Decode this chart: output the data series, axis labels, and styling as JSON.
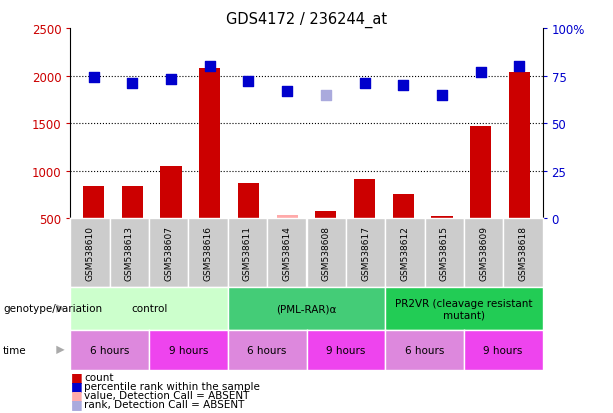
{
  "title": "GDS4172 / 236244_at",
  "samples": [
    "GSM538610",
    "GSM538613",
    "GSM538607",
    "GSM538616",
    "GSM538611",
    "GSM538614",
    "GSM538608",
    "GSM538617",
    "GSM538612",
    "GSM538615",
    "GSM538609",
    "GSM538618"
  ],
  "count_values": [
    840,
    840,
    1050,
    2080,
    870,
    540,
    580,
    910,
    760,
    530,
    1470,
    2040
  ],
  "count_absent": [
    false,
    false,
    false,
    false,
    false,
    true,
    false,
    false,
    false,
    false,
    false,
    false
  ],
  "rank_values": [
    74,
    71,
    73,
    80,
    72,
    67,
    65,
    71,
    70,
    65,
    77,
    80
  ],
  "rank_absent": [
    false,
    false,
    false,
    false,
    false,
    false,
    true,
    false,
    false,
    false,
    false,
    false
  ],
  "count_color": "#cc0000",
  "count_absent_color": "#ffaaaa",
  "rank_color": "#0000cc",
  "rank_absent_color": "#aaaadd",
  "ylim_left": [
    500,
    2500
  ],
  "ylim_right": [
    0,
    100
  ],
  "yticks_left": [
    500,
    1000,
    1500,
    2000,
    2500
  ],
  "yticks_right": [
    0,
    25,
    50,
    75,
    100
  ],
  "ytick_labels_right": [
    "0",
    "25",
    "50",
    "75",
    "100%"
  ],
  "groups": [
    {
      "label": "control",
      "start": 0,
      "end": 4,
      "color": "#ccffcc"
    },
    {
      "label": "(PML-RAR)α",
      "start": 4,
      "end": 8,
      "color": "#44cc77"
    },
    {
      "label": "PR2VR (cleavage resistant\nmutant)",
      "start": 8,
      "end": 12,
      "color": "#22cc55"
    }
  ],
  "time_groups": [
    {
      "label": "6 hours",
      "start": 0,
      "end": 2,
      "color": "#dd88dd"
    },
    {
      "label": "9 hours",
      "start": 2,
      "end": 4,
      "color": "#ee44ee"
    },
    {
      "label": "6 hours",
      "start": 4,
      "end": 6,
      "color": "#dd88dd"
    },
    {
      "label": "9 hours",
      "start": 6,
      "end": 8,
      "color": "#ee44ee"
    },
    {
      "label": "6 hours",
      "start": 8,
      "end": 10,
      "color": "#dd88dd"
    },
    {
      "label": "9 hours",
      "start": 10,
      "end": 12,
      "color": "#ee44ee"
    }
  ],
  "bar_width": 0.55,
  "marker_size": 55,
  "background_color": "#ffffff",
  "sample_bg_color": "#cccccc",
  "arrow_color": "#aaaaaa"
}
